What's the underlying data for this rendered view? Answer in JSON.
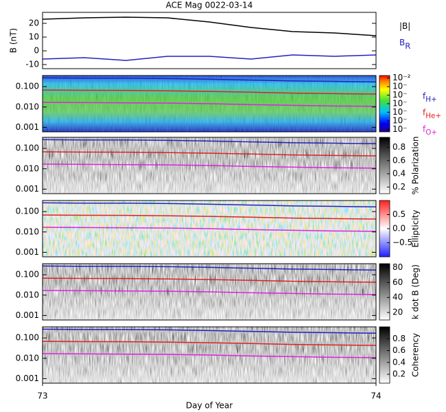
{
  "chart_data": [
    {
      "type": "line",
      "title": "ACE Mag 0022-03-14",
      "ylabel": "B (nT)",
      "x": [
        73,
        73.125,
        73.25,
        73.375,
        73.5,
        73.625,
        73.75,
        73.875,
        74
      ],
      "ylim": [
        -13,
        28
      ],
      "yticks": [
        -10,
        0,
        10,
        20
      ],
      "series": [
        {
          "name": "|B|",
          "color": "#000000",
          "values": [
            23,
            24,
            24.5,
            24,
            21,
            17,
            14,
            13,
            11
          ]
        },
        {
          "name": "B",
          "name_sub": "R",
          "color": "#2020c0",
          "values": [
            -6,
            -5,
            -7,
            -4,
            -4,
            -6,
            -3,
            -4,
            -3
          ]
        }
      ]
    },
    {
      "type": "spectrogram",
      "log_y": true,
      "ylim": [
        0.0006,
        0.35
      ],
      "yticks": [
        {
          "value": 0.001,
          "label": "0.001"
        },
        {
          "value": 0.01,
          "label": "0.010"
        },
        {
          "value": 0.1,
          "label": "0.100"
        }
      ],
      "colormap": "jet",
      "colorbar": {
        "lim": [
          -8.3,
          -1.7
        ],
        "ticks": [
          {
            "value": -2,
            "label": "10⁻²"
          },
          {
            "value": -3,
            "label": "10⁻"
          },
          {
            "value": -4,
            "label": "10⁻"
          },
          {
            "value": -5,
            "label": "10⁻"
          },
          {
            "value": -6,
            "label": "10⁻"
          },
          {
            "value": -7,
            "label": "10⁻"
          },
          {
            "value": -8,
            "label": "10⁻"
          }
        ]
      },
      "series": [
        {
          "name": "f",
          "name_sub": "H+",
          "color": "#2020c0",
          "values": [
            0.27,
            0.26,
            0.26,
            0.25,
            0.23,
            0.21,
            0.19,
            0.18,
            0.17
          ]
        },
        {
          "name": "f",
          "name_sub": "He+",
          "color": "#e02020",
          "values": [
            0.068,
            0.066,
            0.065,
            0.062,
            0.058,
            0.053,
            0.048,
            0.045,
            0.043
          ]
        },
        {
          "name": "f",
          "name_sub": "O+",
          "color": "#e020e0",
          "values": [
            0.017,
            0.0165,
            0.016,
            0.0155,
            0.0145,
            0.013,
            0.012,
            0.0112,
            0.0107
          ]
        }
      ]
    },
    {
      "type": "spectrogram",
      "log_y": true,
      "ylim": [
        0.0006,
        0.35
      ],
      "yticks": [
        {
          "value": 0.001,
          "label": "0.001"
        },
        {
          "value": 0.01,
          "label": "0.010"
        },
        {
          "value": 0.1,
          "label": "0.100"
        }
      ],
      "colormap": "gray",
      "colorbar": {
        "label": "% Polarization",
        "lim": [
          0.1,
          0.95
        ],
        "ticks": [
          0.2,
          0.4,
          0.6,
          0.8
        ]
      }
    },
    {
      "type": "spectrogram",
      "log_y": true,
      "ylim": [
        0.0006,
        0.35
      ],
      "yticks": [
        {
          "value": 0.001,
          "label": "0.001"
        },
        {
          "value": 0.01,
          "label": "0.010"
        },
        {
          "value": 0.1,
          "label": "0.100"
        }
      ],
      "colormap": "bwr",
      "colorbar": {
        "label": "Ellipticity",
        "lim": [
          -1,
          1
        ],
        "ticks": [
          {
            "value": -0.5,
            "label": "−0.5"
          },
          {
            "value": 0,
            "label": "0.0"
          },
          0.5
        ]
      }
    },
    {
      "type": "spectrogram",
      "log_y": true,
      "ylim": [
        0.0006,
        0.35
      ],
      "yticks": [
        {
          "value": 0.001,
          "label": "0.001"
        },
        {
          "value": 0.01,
          "label": "0.010"
        },
        {
          "value": 0.1,
          "label": "0.100"
        }
      ],
      "colormap": "gray",
      "colorbar": {
        "label": "k dot B (Deg)",
        "lim": [
          10,
          85
        ],
        "ticks": [
          20,
          40,
          60,
          80
        ]
      }
    },
    {
      "type": "spectrogram",
      "log_y": true,
      "ylim": [
        0.0006,
        0.35
      ],
      "yticks": [
        {
          "value": 0.001,
          "label": "0.001"
        },
        {
          "value": 0.01,
          "label": "0.010"
        },
        {
          "value": 0.1,
          "label": "0.100"
        }
      ],
      "colormap": "gray",
      "colorbar": {
        "label": "Coherency",
        "lim": [
          0.05,
          1
        ],
        "ticks": [
          0.2,
          0.4,
          0.6,
          0.8
        ]
      },
      "xlabel": "Day of Year",
      "xlim": [
        73,
        74
      ],
      "xticks": [
        73,
        74
      ]
    }
  ]
}
